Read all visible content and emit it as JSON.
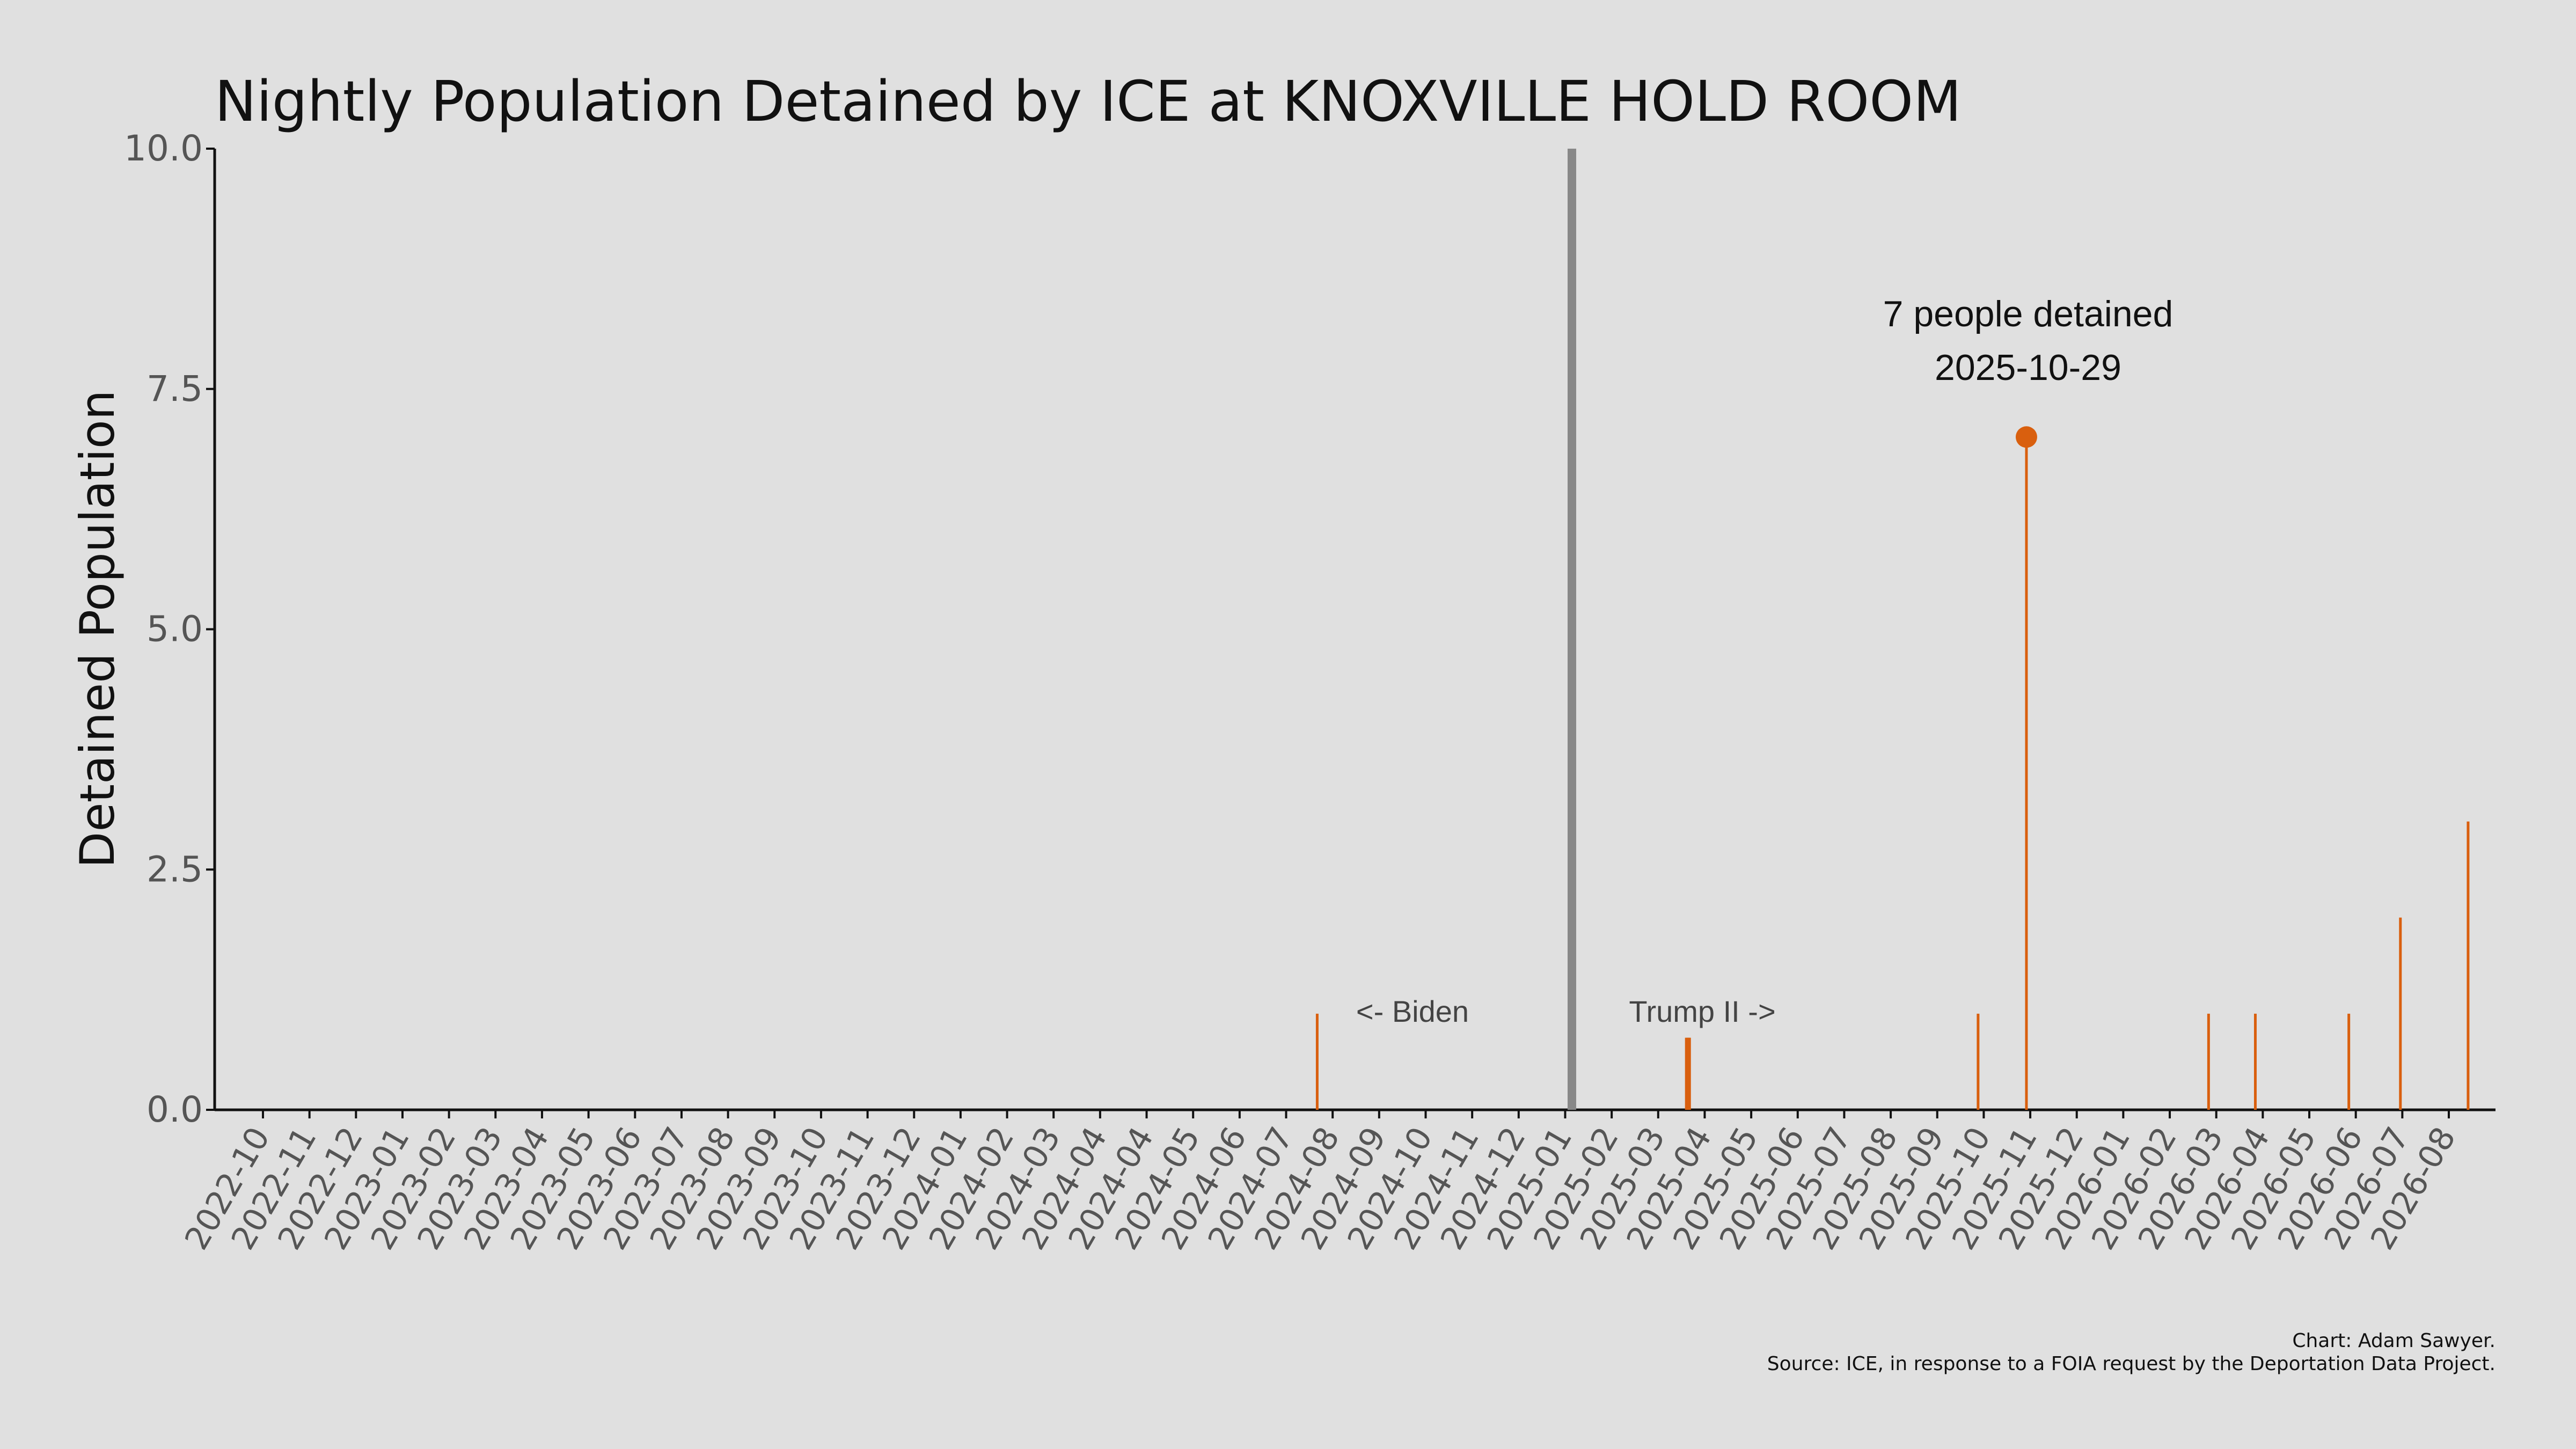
{
  "chart_data": {
    "type": "bar",
    "title": "Nightly Population Detained by ICE at KNOXVILLE HOLD ROOM",
    "ylabel": "Detained Population",
    "xlabel": "",
    "ylim": [
      0,
      10
    ],
    "yticks": [
      "0.0",
      "2.5",
      "5.0",
      "7.5",
      "10.0"
    ],
    "x_range": [
      "2022-10-01",
      "2026-08-16"
    ],
    "x_tick_labels": [
      "2022-10",
      "2022-11",
      "2022-12",
      "2023-01",
      "2023-02",
      "2023-03",
      "2023-04",
      "2023-05",
      "2023-06",
      "2023-07",
      "2023-08",
      "2023-09",
      "2023-10",
      "2023-11",
      "2023-12",
      "2024-01",
      "2024-02",
      "2024-03",
      "2024-04",
      "2024-04",
      "2024-05",
      "2024-06",
      "2024-07",
      "2024-08",
      "2024-09",
      "2024-10",
      "2024-11",
      "2024-12",
      "2025-01",
      "2025-02",
      "2025-03",
      "2025-04",
      "2025-05",
      "2025-06",
      "2025-07",
      "2025-08",
      "2025-09",
      "2025-10",
      "2025-11",
      "2025-12",
      "2026-01",
      "2026-02",
      "2026-03",
      "2026-04",
      "2026-05",
      "2026-06",
      "2026-07",
      "2026-08"
    ],
    "series": [
      {
        "color": "#d95f0e",
        "points": [
          {
            "date": "2024-08-15",
            "value": 1
          },
          {
            "date": "2025-04-01",
            "value": 0.75
          },
          {
            "date": "2025-04-02",
            "value": 0.75
          },
          {
            "date": "2025-04-03",
            "value": 0.75
          },
          {
            "date": "2025-09-29",
            "value": 1
          },
          {
            "date": "2025-10-29",
            "value": 7
          },
          {
            "date": "2026-02-19",
            "value": 1
          },
          {
            "date": "2026-03-20",
            "value": 1
          },
          {
            "date": "2026-05-17",
            "value": 1
          },
          {
            "date": "2026-06-18",
            "value": 2
          },
          {
            "date": "2026-07-30",
            "value": 3
          }
        ]
      }
    ],
    "highlight": {
      "date": "2025-10-29",
      "value": 7,
      "text_line1": "7 people detained",
      "text_line2": "2025-10-29"
    },
    "divider": {
      "date": "2025-01-20",
      "color": "#888888"
    },
    "era_labels": {
      "left": "<- Biden",
      "right": "Trump II ->"
    },
    "grid": false
  },
  "footer": {
    "credit": "Chart: Adam Sawyer.",
    "source": "Source: ICE, in response to a FOIA request by the Deportation Data Project."
  }
}
